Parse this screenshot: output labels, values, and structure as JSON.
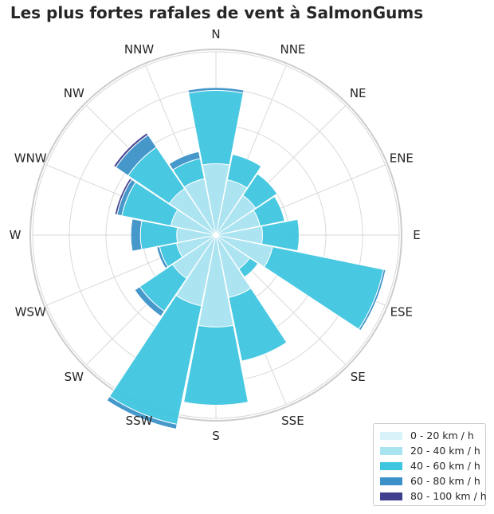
{
  "chart_data": {
    "type": "windrose",
    "title": "Les plus fortes rafales de vent à SalmonGums",
    "directions": [
      "N",
      "NNE",
      "NE",
      "ENE",
      "E",
      "ESE",
      "SE",
      "SSE",
      "S",
      "SSW",
      "SW",
      "WSW",
      "W",
      "WNW",
      "NW",
      "NNW"
    ],
    "series": [
      {
        "name": "0 - 20 km / h",
        "color": "#d7f2f8",
        "values": [
          0,
          0,
          0,
          0,
          0,
          0,
          0,
          0,
          0,
          0,
          0,
          0,
          0,
          0,
          0,
          0
        ]
      },
      {
        "name": "20 - 40 km / h",
        "color": "#a8e3f0",
        "values": [
          2.22,
          1.76,
          1.49,
          1.4,
          1.45,
          1.8,
          1.27,
          1.98,
          2.86,
          2.25,
          1.63,
          1.25,
          1.22,
          1.43,
          1.75,
          1.79
        ]
      },
      {
        "name": "40 - 60 km / h",
        "color": "#3ec5df",
        "values": [
          2.28,
          0.8,
          0.81,
          0.78,
          1.14,
          3.52,
          0.31,
          2.02,
          2.43,
          3.76,
          1.23,
          0.54,
          1.13,
          1.56,
          1.55,
          0.64
        ]
      },
      {
        "name": "60 - 80 km / h",
        "color": "#3c92c8",
        "values": [
          0.09,
          0,
          0,
          0,
          0,
          0.07,
          0,
          0,
          0,
          0.15,
          0.19,
          0.09,
          0.3,
          0.15,
          0.46,
          0.22
        ]
      },
      {
        "name": "80 - 100 km / h",
        "color": "#3f3f8e",
        "values": [
          0,
          0,
          0,
          0,
          0,
          0,
          0,
          0,
          0,
          0,
          0,
          0,
          0,
          0.07,
          0.08,
          0
        ]
      }
    ],
    "radial_max": 5.7,
    "grid": true,
    "legend_position": "bottom-right"
  }
}
